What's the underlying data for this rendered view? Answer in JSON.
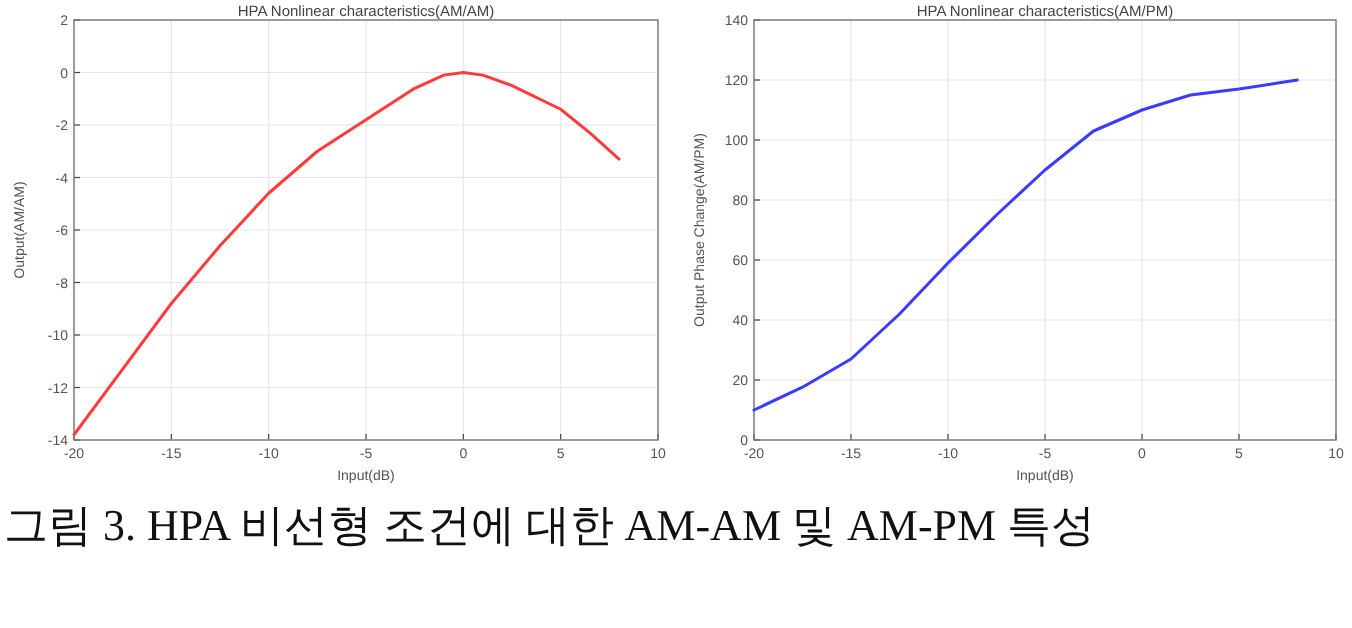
{
  "chart_data": [
    {
      "type": "line",
      "title": "HPA Nonlinear characteristics(AM/AM)",
      "xlabel": "Input(dB)",
      "ylabel": "Output(AM/AM)",
      "xlim": [
        -20,
        10
      ],
      "xticks": [
        -20,
        -15,
        -10,
        -5,
        0,
        5,
        10
      ],
      "ylim": [
        -14,
        2
      ],
      "yticks": [
        -14,
        -12,
        -10,
        -8,
        -6,
        -4,
        -2,
        0,
        2
      ],
      "grid": true,
      "series": [
        {
          "color": "#ff3b3b",
          "x": [
            -20,
            -17.5,
            -15,
            -12.5,
            -10,
            -7.5,
            -5,
            -2.5,
            -1,
            0,
            1,
            2.5,
            5,
            6.5,
            8
          ],
          "values": [
            -13.8,
            -11.3,
            -8.8,
            -6.6,
            -4.6,
            -3.0,
            -1.8,
            -0.6,
            -0.1,
            0,
            -0.1,
            -0.5,
            -1.4,
            -2.3,
            -3.3
          ]
        }
      ],
      "annotations": [
        "그림 3. HPA 비선형 조건에 대한 AM-AM 및 AM-PM 특성"
      ]
    },
    {
      "type": "line",
      "title": "HPA Nonlinear characteristics(AM/PM)",
      "xlabel": "Input(dB)",
      "ylabel": "Output Phase Change(AM/PM)",
      "xlim": [
        -20,
        10
      ],
      "xticks": [
        -20,
        -15,
        -10,
        -5,
        0,
        5,
        10
      ],
      "ylim": [
        0,
        140
      ],
      "yticks": [
        0,
        20,
        40,
        60,
        80,
        100,
        120,
        140
      ],
      "grid": true,
      "series": [
        {
          "color": "#3b3bff",
          "x": [
            -20,
            -17.5,
            -15,
            -12.5,
            -10,
            -7.5,
            -5,
            -2.5,
            0,
            2.5,
            5,
            8
          ],
          "values": [
            10,
            17.6,
            27,
            42,
            59,
            75,
            90,
            103,
            110,
            115,
            117,
            120
          ]
        }
      ]
    }
  ]
}
